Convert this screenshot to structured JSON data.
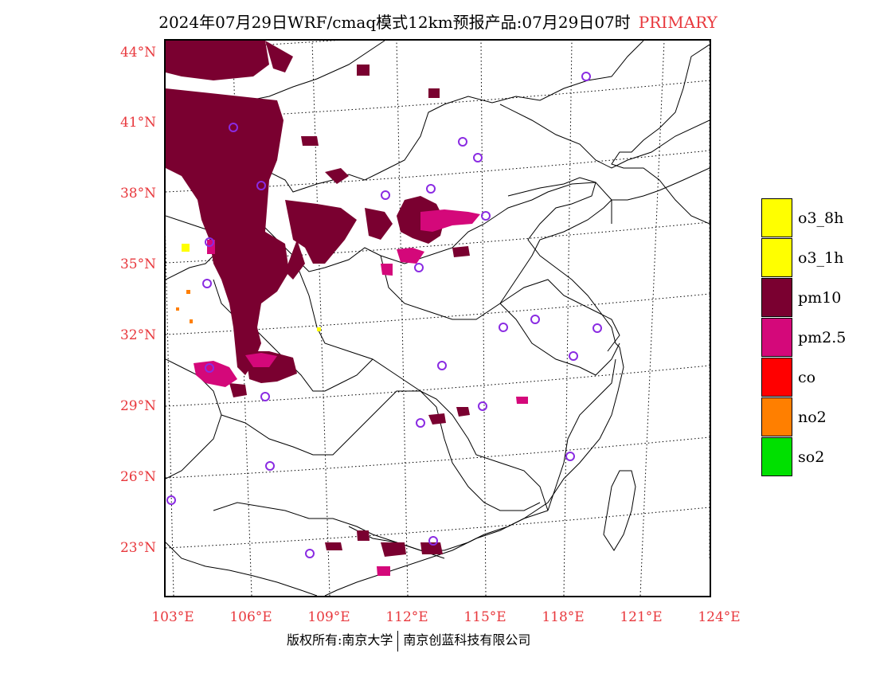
{
  "title": {
    "main": "2024年07月29日WRF/cmaq模式12km预报产品:07月29日07时",
    "tag": "PRIMARY"
  },
  "axes": {
    "lat_labels": [
      "44°N",
      "41°N",
      "38°N",
      "35°N",
      "32°N",
      "29°N",
      "26°N",
      "23°N"
    ],
    "lon_labels": [
      "103°E",
      "106°E",
      "109°E",
      "112°E",
      "115°E",
      "118°E",
      "121°E",
      "124°E"
    ]
  },
  "legend": {
    "items": [
      {
        "label": "o3_8h",
        "color": "#ffff00"
      },
      {
        "label": "o3_1h",
        "color": "#ffff00"
      },
      {
        "label": "pm10",
        "color": "#7a0030"
      },
      {
        "label": "pm2.5",
        "color": "#d4087a"
      },
      {
        "label": "co",
        "color": "#ff0000"
      },
      {
        "label": "no2",
        "color": "#ff7f00"
      },
      {
        "label": "so2",
        "color": "#00e000"
      }
    ]
  },
  "footer": {
    "copyright": "版权所有:南京大学",
    "company": "南京创蓝科技有限公司"
  },
  "colors": {
    "label_red": "#e8383d",
    "pm10": "#7a0030",
    "pm25": "#d4087a",
    "station_marker": "#8a2be2"
  },
  "icons": [
    "station-circle-icon"
  ]
}
